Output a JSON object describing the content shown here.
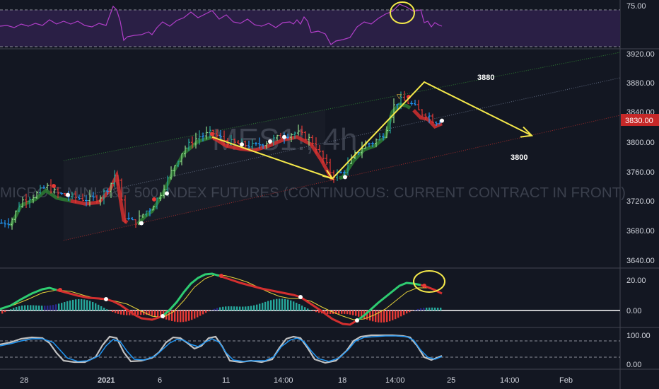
{
  "colors": {
    "background": "#131722",
    "rsi_band": "#2a1f45",
    "rsi_line": "#b03ec8",
    "up_bar": "#26a69a",
    "up_bar_light": "#8fd98a",
    "down_bar": "#e53935",
    "neutral_bar": "#2196f3",
    "trend_red": "#d32f2f",
    "trend_green": "#2e7d32",
    "yellow": "#f5e94a",
    "macd_pos": "#26a69a",
    "macd_neg": "#e53935",
    "macd_dark": "#2a2a8c",
    "stoch_k": "#c0c0c0",
    "stoch_d": "#2196f3",
    "price_badge": "#c62828",
    "grid": "#2a2e39"
  },
  "watermark": {
    "ticker": "MES1!, 4h",
    "description": "MICRO E-MINI S&P 500 INDEX FUTURES (CONTINUOUS: CURRENT CONTRACT IN FRONT)"
  },
  "annotations": {
    "target_high": "3880",
    "target_low": "3800"
  },
  "price_badge": "3830.00",
  "chart_data": [
    {
      "type": "line",
      "panel": "rsi",
      "y_ticks": [
        "75.00"
      ],
      "overbought": 75,
      "oversold": 25
    },
    {
      "type": "candlestick",
      "panel": "price",
      "x_ticks": [
        "28",
        "2021",
        "6",
        "11",
        "14:00",
        "18",
        "14:00",
        "25",
        "14:00",
        "Feb"
      ],
      "y_ticks": [
        "3920.00",
        "3880.00",
        "3840.00",
        "3800.00",
        "3760.00",
        "3720.00",
        "3680.00",
        "3640.00"
      ],
      "ylim": [
        3630,
        3930
      ],
      "last_price": 3830,
      "drawn_path_prices": [
        3806,
        3750,
        3855,
        3880,
        3808
      ],
      "drawn_path_labels": [
        "3880",
        "3800"
      ]
    },
    {
      "type": "bar",
      "panel": "macd",
      "y_ticks": [
        "20.00",
        "0.00"
      ],
      "ylim": [
        -32,
        32
      ]
    },
    {
      "type": "line",
      "panel": "stochastic",
      "y_ticks": [
        "100.00",
        "0.00"
      ],
      "ylim": [
        -8,
        108
      ],
      "levels": [
        80,
        20
      ]
    }
  ]
}
